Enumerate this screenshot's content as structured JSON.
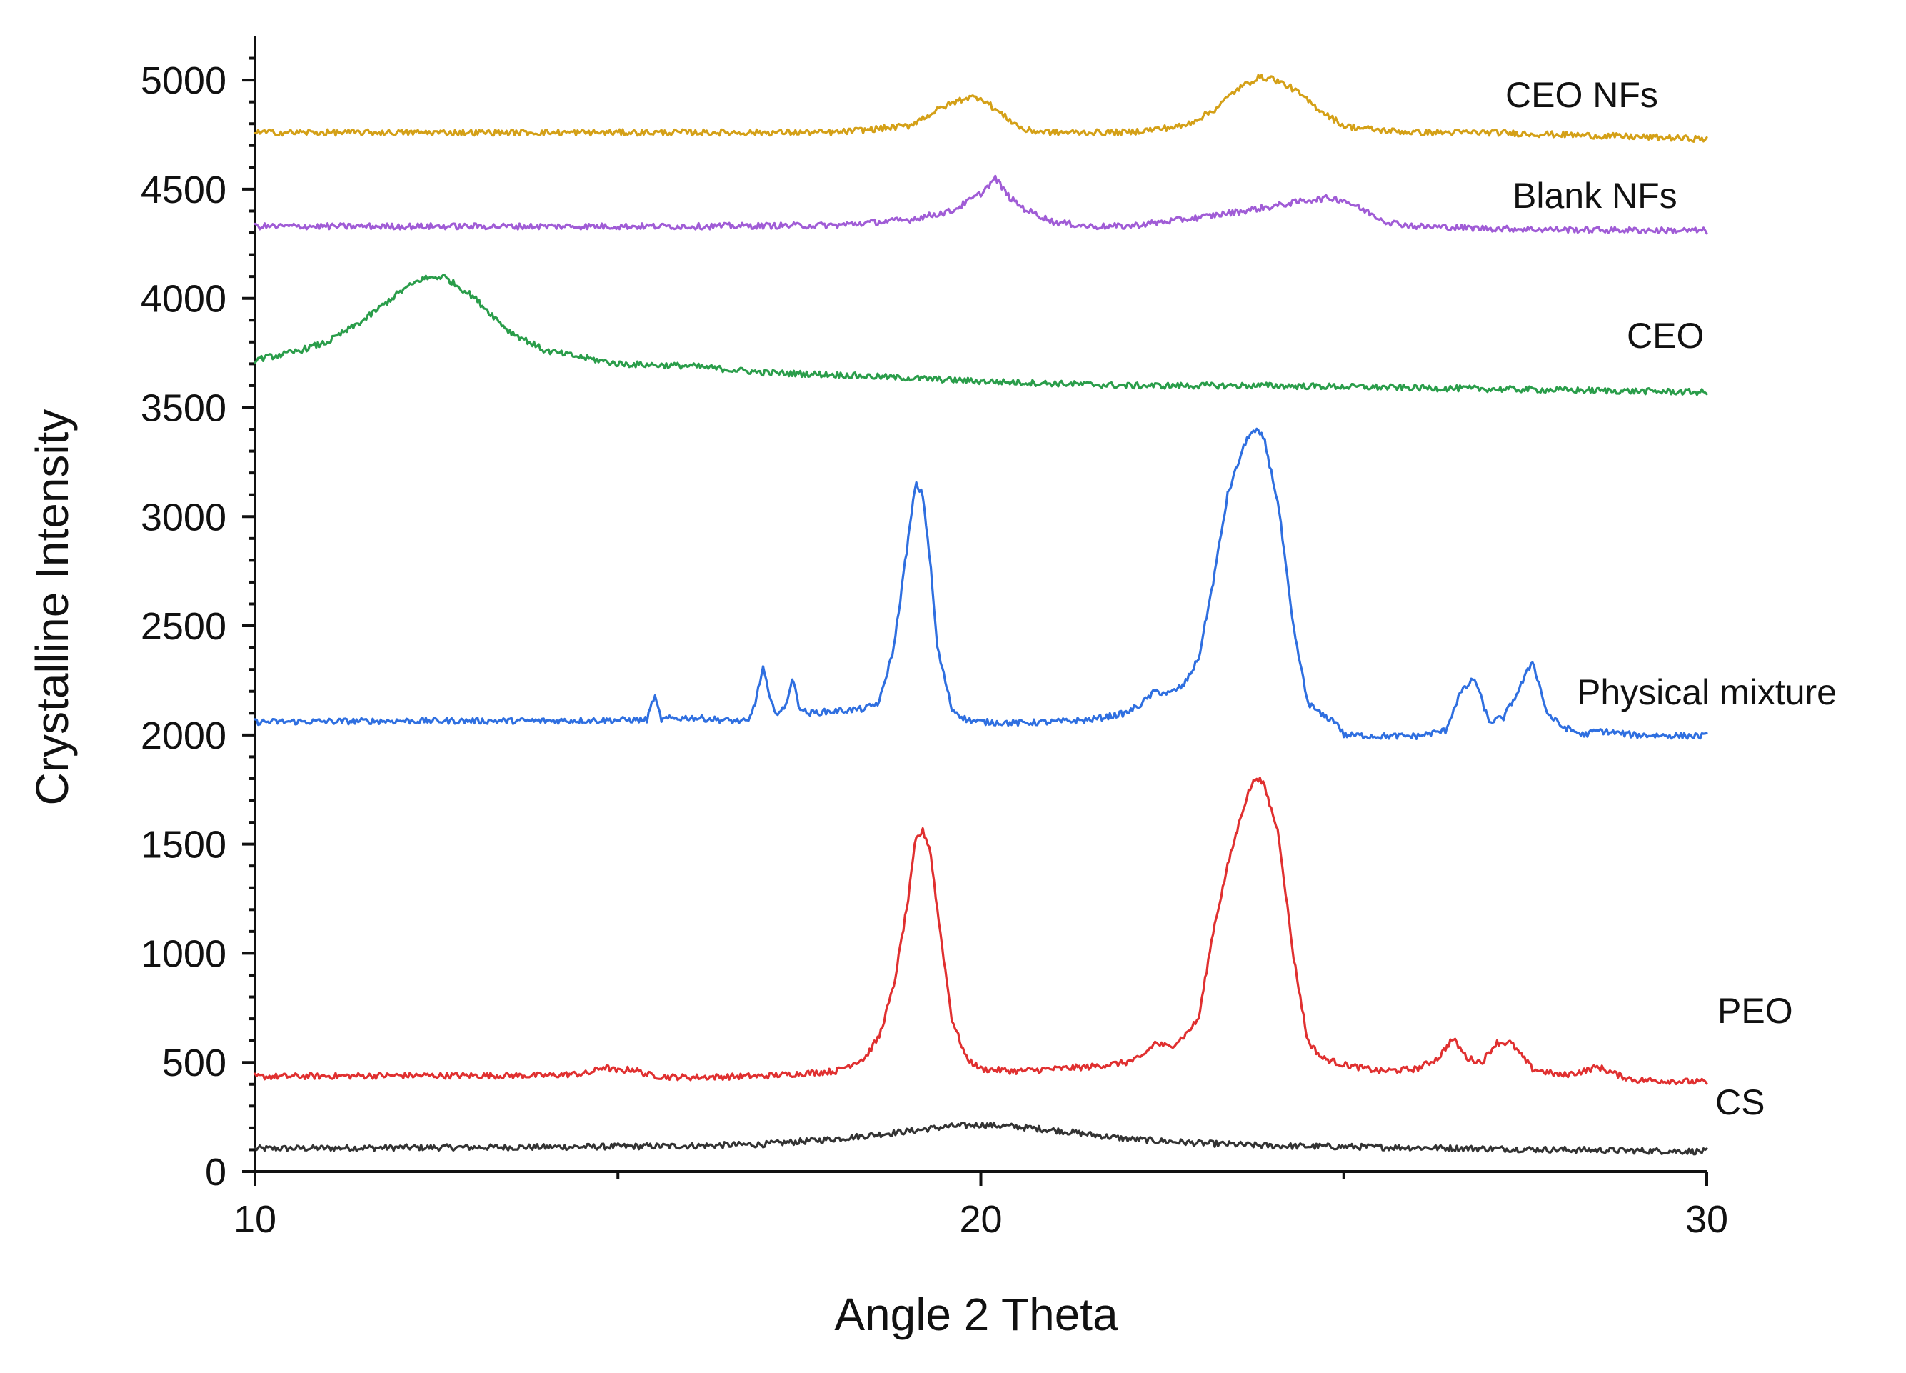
{
  "chart_data": {
    "type": "line",
    "title": "",
    "xlabel": "Angle 2 Theta",
    "ylabel": "Crystalline Intensity",
    "xlim": [
      10,
      30
    ],
    "ylim": [
      0,
      5200
    ],
    "grid": false,
    "x_ticks": [
      10,
      20,
      30
    ],
    "x_tick_labels": [
      "10",
      "20",
      "30"
    ],
    "y_ticks": [
      0,
      500,
      1000,
      1500,
      2000,
      2500,
      3000,
      3500,
      4000,
      4500,
      5000
    ],
    "y_tick_labels": [
      "0",
      "500",
      "1000",
      "1500",
      "2000",
      "2500",
      "3000",
      "3500",
      "4000",
      "4500",
      "5000"
    ],
    "series": [
      {
        "name": "CS",
        "color": "#333333",
        "x": [
          10,
          12,
          14,
          16,
          17,
          18,
          19,
          19.5,
          20,
          20.5,
          21,
          21.5,
          22,
          23,
          24,
          26,
          28,
          30
        ],
        "values": [
          105,
          110,
          112,
          118,
          125,
          150,
          185,
          205,
          215,
          205,
          190,
          170,
          150,
          130,
          118,
          110,
          100,
          92
        ]
      },
      {
        "name": "PEO",
        "color": "#e03030",
        "x": [
          10,
          12,
          14,
          14.6,
          14.8,
          15,
          15.2,
          15.4,
          15.6,
          16,
          17,
          18,
          18.4,
          18.6,
          18.8,
          19,
          19.1,
          19.2,
          19.3,
          19.4,
          19.6,
          19.8,
          20,
          20.5,
          21,
          21.5,
          22,
          22.2,
          22.4,
          22.6,
          22.8,
          23,
          23.2,
          23.4,
          23.6,
          23.7,
          23.8,
          23.9,
          24.1,
          24.3,
          24.5,
          24.7,
          25,
          25.5,
          26,
          26.3,
          26.5,
          26.7,
          26.9,
          27.1,
          27.3,
          27.6,
          28,
          28.3,
          28.5,
          28.8,
          29,
          30
        ],
        "values": [
          435,
          440,
          440,
          450,
          480,
          460,
          470,
          445,
          435,
          432,
          438,
          460,
          520,
          620,
          850,
          1250,
          1520,
          1560,
          1480,
          1200,
          700,
          520,
          470,
          460,
          470,
          480,
          500,
          520,
          590,
          570,
          620,
          700,
          1100,
          1400,
          1650,
          1750,
          1810,
          1770,
          1550,
          1000,
          600,
          520,
          490,
          460,
          470,
          520,
          610,
          520,
          500,
          590,
          590,
          470,
          440,
          460,
          480,
          440,
          420,
          410
        ]
      },
      {
        "name": "Physical mixture",
        "color": "#2f6fe0",
        "x": [
          10,
          12,
          14,
          15.4,
          15.5,
          15.6,
          15.7,
          16,
          16.8,
          16.9,
          17,
          17.1,
          17.2,
          17.3,
          17.4,
          17.5,
          17.6,
          18,
          18.4,
          18.6,
          18.8,
          19,
          19.1,
          19.2,
          19.3,
          19.4,
          19.6,
          19.8,
          20,
          20.5,
          21,
          21.5,
          22,
          22.2,
          22.4,
          22.6,
          22.8,
          23,
          23.2,
          23.4,
          23.6,
          23.7,
          23.8,
          23.9,
          24.1,
          24.3,
          24.5,
          24.7,
          24.9,
          25,
          25.5,
          26,
          26.4,
          26.6,
          26.8,
          27,
          27.2,
          27.4,
          27.6,
          27.8,
          28,
          28.3,
          28.5,
          29,
          30
        ],
        "values": [
          2060,
          2065,
          2065,
          2070,
          2180,
          2070,
          2075,
          2080,
          2060,
          2160,
          2310,
          2150,
          2100,
          2120,
          2260,
          2130,
          2100,
          2110,
          2120,
          2150,
          2400,
          2900,
          3150,
          3100,
          2800,
          2400,
          2120,
          2070,
          2060,
          2055,
          2060,
          2070,
          2100,
          2140,
          2200,
          2190,
          2230,
          2350,
          2700,
          3100,
          3300,
          3380,
          3390,
          3360,
          3050,
          2500,
          2150,
          2090,
          2060,
          2000,
          1995,
          1995,
          2020,
          2190,
          2260,
          2060,
          2080,
          2200,
          2340,
          2100,
          2040,
          2000,
          2020,
          2000,
          1995
        ]
      },
      {
        "name": "CEO",
        "color": "#2a9d4a",
        "x": [
          10,
          10.5,
          11,
          11.5,
          12,
          12.3,
          12.6,
          13,
          13.5,
          14,
          15,
          16,
          17,
          18,
          20,
          22,
          24,
          26,
          28,
          30
        ],
        "values": [
          3720,
          3750,
          3800,
          3900,
          4030,
          4090,
          4100,
          4010,
          3850,
          3760,
          3700,
          3690,
          3660,
          3650,
          3620,
          3600,
          3600,
          3590,
          3580,
          3570
        ]
      },
      {
        "name": "Blank NFs",
        "color": "#a05cd6",
        "x": [
          10,
          12,
          14,
          16,
          18,
          19,
          19.6,
          20,
          20.2,
          20.4,
          20.6,
          21,
          21.5,
          22,
          23,
          24,
          24.5,
          24.8,
          25,
          25.3,
          25.6,
          26,
          27,
          28,
          30
        ],
        "values": [
          4330,
          4330,
          4330,
          4330,
          4335,
          4360,
          4400,
          4480,
          4550,
          4460,
          4410,
          4350,
          4330,
          4330,
          4370,
          4420,
          4450,
          4460,
          4450,
          4400,
          4350,
          4330,
          4320,
          4315,
          4310
        ]
      },
      {
        "name": "CEO NFs",
        "color": "#d4a017",
        "x": [
          10,
          12,
          14,
          16,
          18,
          19,
          19.5,
          19.8,
          20,
          20.3,
          20.6,
          21,
          22,
          22.8,
          23.2,
          23.5,
          23.8,
          24,
          24.3,
          24.6,
          25,
          25.5,
          26,
          27,
          28,
          30
        ],
        "values": [
          4760,
          4760,
          4760,
          4760,
          4760,
          4790,
          4880,
          4920,
          4920,
          4840,
          4770,
          4760,
          4760,
          4790,
          4860,
          4950,
          5010,
          5010,
          4960,
          4880,
          4790,
          4770,
          4760,
          4760,
          4750,
          4730
        ]
      }
    ],
    "labels": [
      {
        "series": "CEO NFs",
        "text": "CEO NFs"
      },
      {
        "series": "Blank NFs",
        "text": "Blank NFs"
      },
      {
        "series": "CEO",
        "text": "CEO"
      },
      {
        "series": "Physical mixture",
        "text": "Physical mixture"
      },
      {
        "series": "PEO",
        "text": "PEO"
      },
      {
        "series": "CS",
        "text": "CS"
      }
    ]
  }
}
